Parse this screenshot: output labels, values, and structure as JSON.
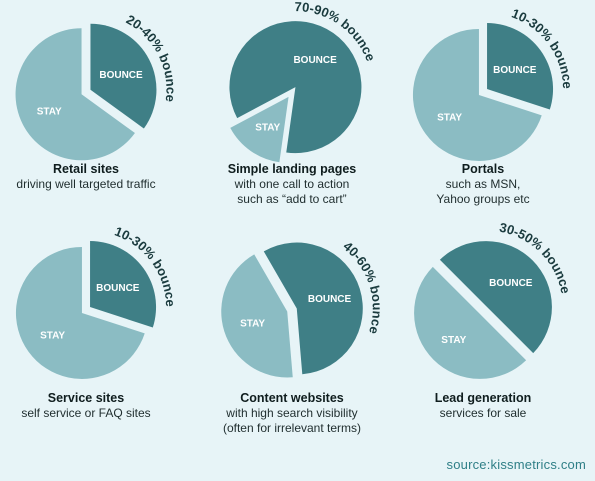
{
  "colors": {
    "background": "#e7f4f7",
    "bounce": "#3f7f86",
    "stay": "#8bbcc3",
    "source_text": "#2f7f87"
  },
  "chart_data": [
    {
      "type": "pie",
      "slices": [
        {
          "label": "BOUNCE",
          "value": 35
        },
        {
          "label": "STAY",
          "value": 65
        }
      ],
      "annotation": "20-40% bounce",
      "title": "Retail sites",
      "subtitle_lines": [
        "driving well targeted traffic"
      ]
    },
    {
      "type": "pie",
      "slices": [
        {
          "label": "BOUNCE",
          "value": 85
        },
        {
          "label": "STAY",
          "value": 15
        }
      ],
      "annotation": "70-90% bounce",
      "title": "Simple landing pages",
      "subtitle_lines": [
        "with one call to action",
        "such as “add to cart”"
      ]
    },
    {
      "type": "pie",
      "slices": [
        {
          "label": "BOUNCE",
          "value": 30
        },
        {
          "label": "STAY",
          "value": 70
        }
      ],
      "annotation": "10-30% bounce",
      "title": "Portals",
      "subtitle_lines": [
        "such as MSN,",
        "Yahoo groups etc"
      ]
    },
    {
      "type": "pie",
      "slices": [
        {
          "label": "BOUNCE",
          "value": 30
        },
        {
          "label": "STAY",
          "value": 70
        }
      ],
      "annotation": "10-30% bounce",
      "title": "Service sites",
      "subtitle_lines": [
        "self service or FAQ sites"
      ]
    },
    {
      "type": "pie",
      "slices": [
        {
          "label": "BOUNCE",
          "value": 57
        },
        {
          "label": "STAY",
          "value": 43
        }
      ],
      "annotation": "40-60% bounce",
      "title": "Content websites",
      "subtitle_lines": [
        "with high search visibility",
        "(often for irrelevant terms)"
      ]
    },
    {
      "type": "pie",
      "slices": [
        {
          "label": "BOUNCE",
          "value": 50
        },
        {
          "label": "STAY",
          "value": 50
        }
      ],
      "annotation": "30-50% bounce",
      "title": "Lead generation",
      "subtitle_lines": [
        "services for sale"
      ]
    }
  ],
  "source": "source:kissmetrics.com"
}
